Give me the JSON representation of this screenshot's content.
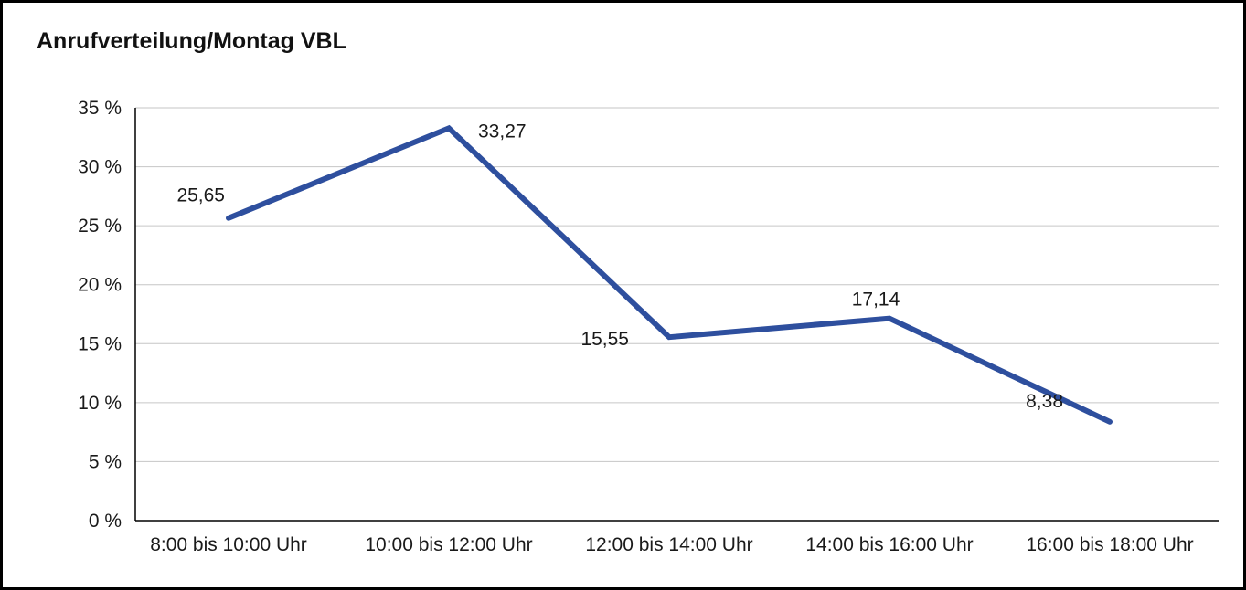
{
  "title": "Anrufverteilung/Montag VBL",
  "chart_data": {
    "type": "line",
    "title": "Anrufverteilung/Montag VBL",
    "categories": [
      "8:00 bis 10:00 Uhr",
      "10:00 bis 12:00 Uhr",
      "12:00 bis 14:00 Uhr",
      "14:00 bis 16:00 Uhr",
      "16:00 bis 18:00 Uhr"
    ],
    "values": [
      25.65,
      33.27,
      15.55,
      17.14,
      8.38
    ],
    "value_labels": [
      "25,65",
      "33,27",
      "15,55",
      "17,14",
      "8,38"
    ],
    "xlabel": "",
    "ylabel": "",
    "ylim": [
      0,
      35
    ],
    "ytick_step": 5,
    "ytick_labels": [
      "0 %",
      "5 %",
      "10 %",
      "15 %",
      "20 %",
      "25 %",
      "30 %",
      "35 %"
    ],
    "grid": true,
    "legend": "none",
    "line_color": "#2e4f9e",
    "grid_color": "#c6c6c6",
    "axis_color": "#000000",
    "text_color": "#1a1a1a"
  }
}
